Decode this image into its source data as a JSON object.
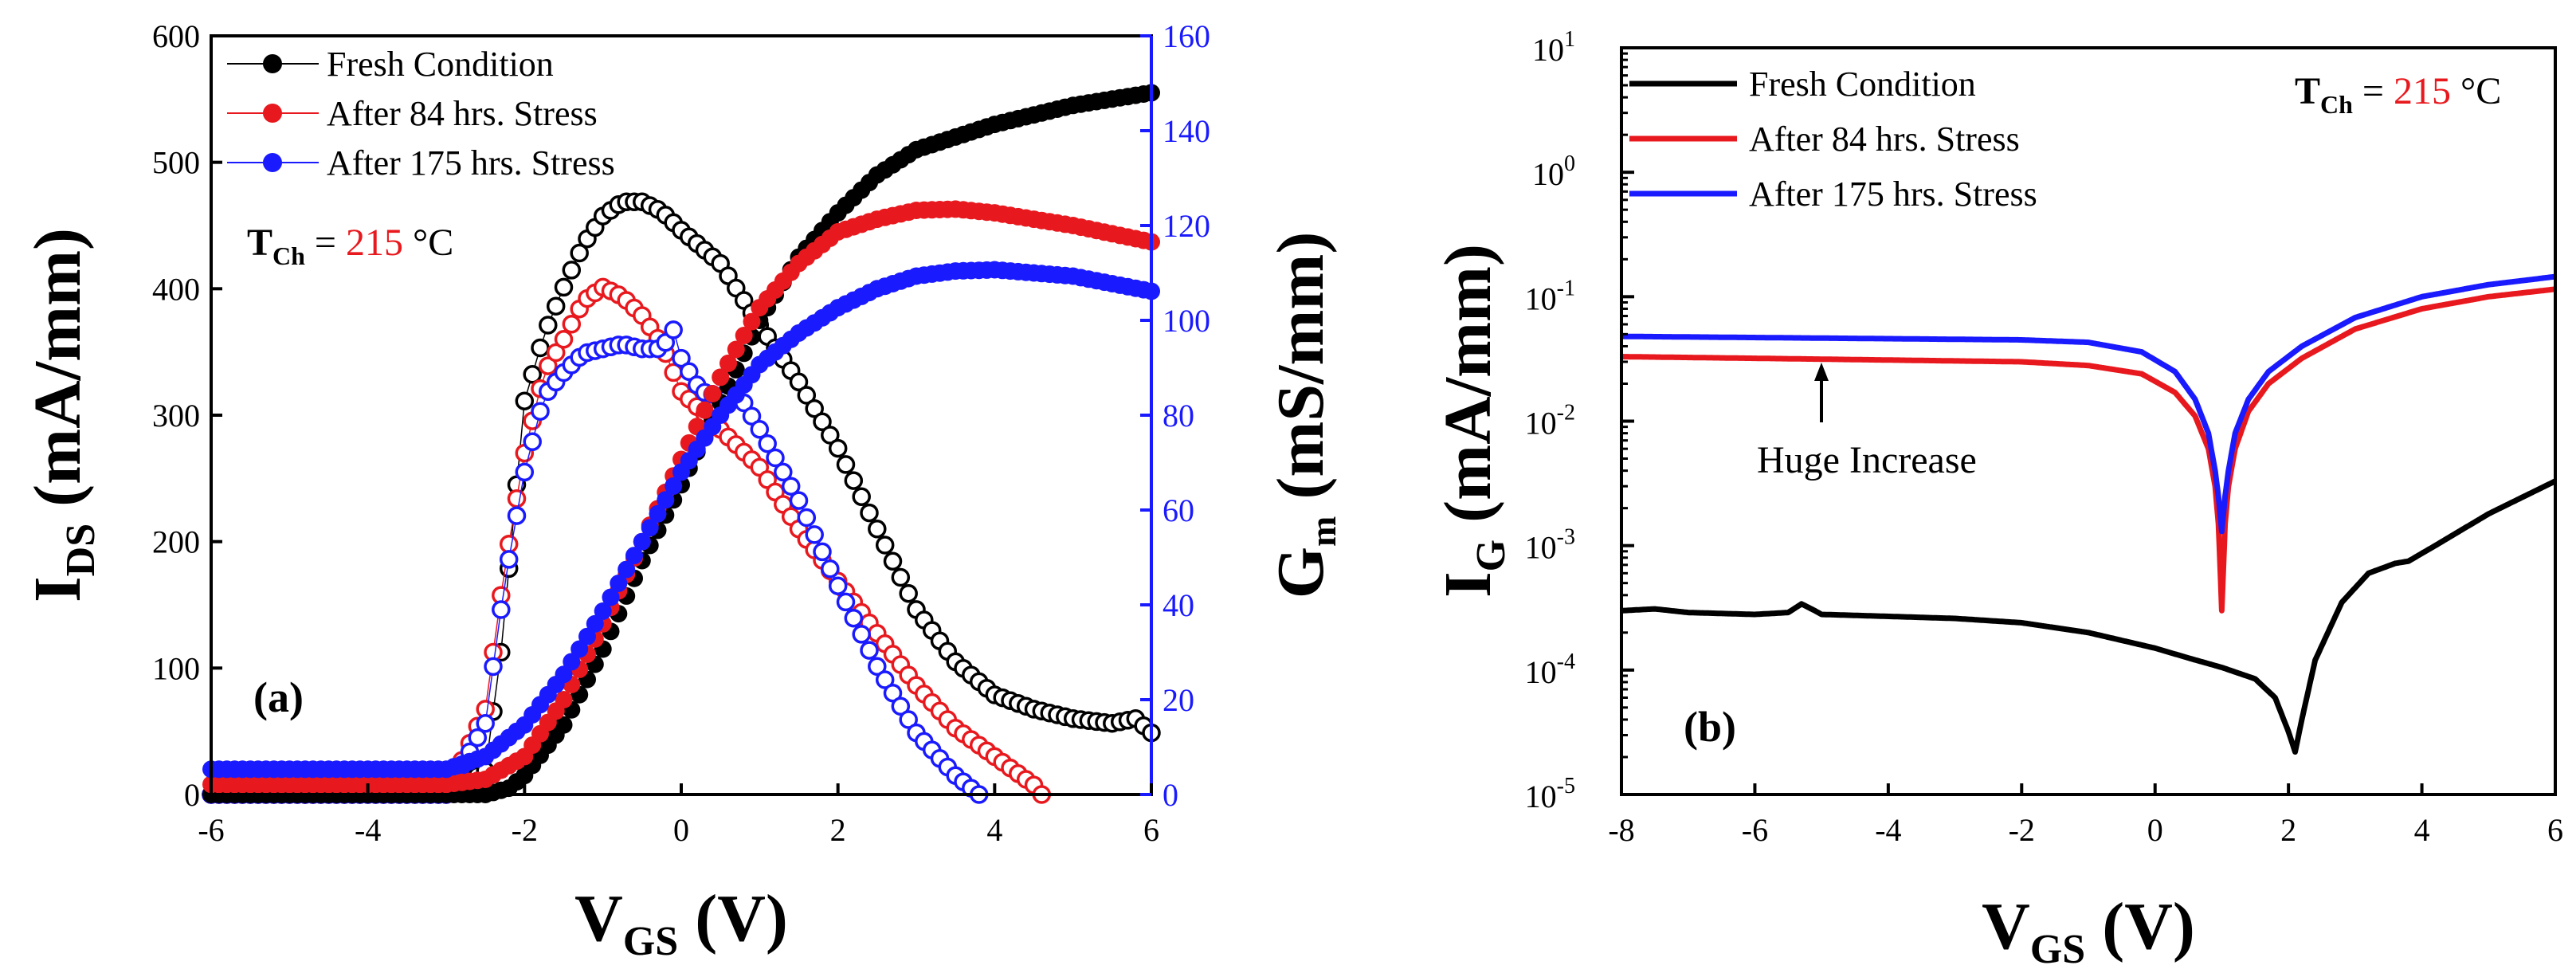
{
  "colors": {
    "fresh": "#000000",
    "after84": "#e8191e",
    "after175": "#1a1aff",
    "right_axis": "#1a1aff",
    "temp_value": "#e8191e"
  },
  "chart_data": [
    {
      "type": "scatter",
      "panel_label": "(a)",
      "xlabel": {
        "main": "V",
        "sub": "GS",
        "unit": " (V)"
      },
      "ylabel": {
        "main": "I",
        "sub": "DS",
        "unit": " (mA/mm)"
      },
      "y2label": {
        "main": "G",
        "sub": "m",
        "unit": " (mS/mm)"
      },
      "xlim": [
        -6,
        6
      ],
      "ylim": [
        0,
        600
      ],
      "y2lim": [
        0,
        160
      ],
      "xticks": [
        -6,
        -4,
        -2,
        0,
        2,
        4,
        6
      ],
      "yticks": [
        0,
        100,
        200,
        300,
        400,
        500,
        600
      ],
      "y2ticks": [
        0,
        20,
        40,
        60,
        80,
        100,
        120,
        140,
        160
      ],
      "legend": [
        "Fresh Condition",
        "After 84 hrs. Stress",
        "After 175 hrs. Stress"
      ],
      "annotation": {
        "prefix": "T",
        "sub": "Ch",
        "eq": " = ",
        "value": "215",
        "unit": " °C"
      },
      "ids_series": [
        {
          "name": "Fresh Condition",
          "color_key": "fresh",
          "x": [
            -6,
            -3,
            -2.5,
            -2.2,
            -2,
            -1.5,
            -1,
            -0.5,
            0,
            0.5,
            1,
            1.5,
            2,
            2.5,
            3,
            4,
            5,
            6
          ],
          "y": [
            0,
            0,
            0,
            5,
            15,
            55,
            115,
            185,
            245,
            310,
            375,
            425,
            460,
            490,
            510,
            530,
            545,
            555
          ]
        },
        {
          "name": "After 84 hrs. Stress",
          "color_key": "after84",
          "x": [
            -6,
            -3,
            -2.5,
            -2,
            -1.5,
            -1,
            -0.5,
            0,
            0.5,
            1,
            1.5,
            2,
            2.5,
            3,
            3.5,
            4,
            5,
            6
          ],
          "y": [
            8,
            8,
            12,
            30,
            75,
            135,
            200,
            265,
            330,
            385,
            420,
            445,
            455,
            462,
            463,
            460,
            450,
            437
          ]
        },
        {
          "name": "After 175 hrs. Stress",
          "color_key": "after175",
          "x": [
            -6,
            -3,
            -2.5,
            -2,
            -1.5,
            -1,
            -0.5,
            0,
            0.5,
            1,
            1.5,
            2,
            2.5,
            3,
            3.5,
            4,
            5,
            6
          ],
          "y": [
            20,
            20,
            30,
            55,
            95,
            145,
            200,
            255,
            300,
            340,
            365,
            385,
            400,
            410,
            414,
            415,
            410,
            398
          ]
        }
      ],
      "gm_series": [
        {
          "name": "Fresh Condition",
          "color_key": "fresh",
          "x": [
            -6,
            -3,
            -2.5,
            -2.3,
            -2,
            -1.75,
            -1.5,
            -1.25,
            -1,
            -0.75,
            -0.5,
            -0.25,
            0,
            0.5,
            1,
            1.5,
            2,
            2.5,
            3,
            3.5,
            4,
            4.5,
            5,
            5.5,
            5.8,
            6
          ],
          "y": [
            0,
            0,
            5,
            30,
            83,
            97,
            107,
            116,
            122,
            125,
            125,
            123,
            119,
            112,
            99,
            87,
            73,
            56,
            39,
            28,
            21,
            18,
            16,
            15,
            16,
            13
          ]
        },
        {
          "name": "After 84 hrs. Stress",
          "color_key": "after84",
          "x": [
            -6,
            -3,
            -2.5,
            -2.25,
            -2,
            -1.75,
            -1.5,
            -1.25,
            -1,
            -0.75,
            -0.5,
            -0.25,
            0,
            0.5,
            1,
            1.5,
            2,
            2.5,
            3,
            3.5,
            4,
            4.5,
            4.6
          ],
          "y": [
            0,
            0,
            18,
            48,
            72,
            89,
            96,
            104,
            107,
            105,
            101,
            95,
            85,
            77,
            69,
            56,
            45,
            34,
            23,
            14,
            8,
            2,
            0
          ]
        },
        {
          "name": "After 175 hrs. Stress",
          "color_key": "after175",
          "x": [
            -6,
            -3,
            -2.5,
            -2.25,
            -2,
            -1.75,
            -1.5,
            -1.25,
            -1,
            -0.75,
            -0.5,
            -0.25,
            -0.1,
            0,
            0.25,
            0.5,
            0.75,
            1,
            1.5,
            2,
            2.5,
            3,
            3.5,
            3.8
          ],
          "y": [
            0,
            0,
            15,
            45,
            68,
            84,
            89,
            93,
            94,
            95,
            94,
            94,
            98,
            92,
            85,
            84,
            84,
            77,
            62,
            44,
            27,
            13,
            4,
            0
          ]
        }
      ]
    },
    {
      "type": "line",
      "panel_label": "(b)",
      "xlabel": {
        "main": "V",
        "sub": "GS",
        "unit": " (V)"
      },
      "ylabel": {
        "main": "I",
        "sub": "G",
        "unit": " (mA/mm)"
      },
      "yscale": "log",
      "xlim": [
        -8,
        6
      ],
      "ylim_exp": [
        -5,
        1
      ],
      "xticks": [
        -8,
        -6,
        -4,
        -2,
        0,
        2,
        4,
        6
      ],
      "yticks_exp": [
        -5,
        -4,
        -3,
        -2,
        -1,
        0,
        1
      ],
      "ytick_base": "10",
      "legend": [
        "Fresh Condition",
        "After 84 hrs. Stress",
        "After 175 hrs. Stress"
      ],
      "annotation": {
        "prefix": "T",
        "sub": "Ch",
        "eq": " = ",
        "value": "215",
        "unit": " °C"
      },
      "arrow_label": "Huge Increase",
      "arrow_x": -5,
      "series": [
        {
          "name": "Fresh Condition",
          "color_key": "fresh",
          "x": [
            -8,
            -7.5,
            -7,
            -6,
            -5.5,
            -5.3,
            -5.1,
            -5,
            -4,
            -3,
            -2,
            -1,
            0,
            0.5,
            1,
            1.5,
            1.8,
            2.0,
            2.1,
            2.2,
            2.4,
            2.8,
            3.2,
            3.6,
            3.8,
            4.2,
            5,
            6
          ],
          "y": [
            0.0003,
            0.00031,
            0.00029,
            0.00028,
            0.00029,
            0.00034,
            0.0003,
            0.00028,
            0.00027,
            0.00026,
            0.00024,
            0.0002,
            0.00015,
            0.000125,
            0.000105,
            8.5e-05,
            6e-05,
            3.2e-05,
            2.2e-05,
            4e-05,
            0.00012,
            0.00035,
            0.0006,
            0.00072,
            0.00075,
            0.001,
            0.0018,
            0.0033
          ]
        },
        {
          "name": "After 84 hrs. Stress",
          "color_key": "after84",
          "x": [
            -8,
            -6,
            -4,
            -2,
            -1,
            -0.2,
            0.3,
            0.6,
            0.8,
            0.9,
            0.95,
            1.0,
            1.05,
            1.1,
            1.2,
            1.4,
            1.7,
            2.2,
            3,
            4,
            5,
            6
          ],
          "y": [
            0.033,
            0.032,
            0.031,
            0.03,
            0.028,
            0.024,
            0.017,
            0.011,
            0.006,
            0.003,
            0.0015,
            0.0003,
            0.0015,
            0.003,
            0.006,
            0.012,
            0.02,
            0.032,
            0.055,
            0.08,
            0.1,
            0.115
          ]
        },
        {
          "name": "After 175 hrs. Stress",
          "color_key": "after175",
          "x": [
            -8,
            -6,
            -4,
            -2,
            -1,
            -0.2,
            0.3,
            0.6,
            0.8,
            0.9,
            0.95,
            1.0,
            1.05,
            1.1,
            1.2,
            1.4,
            1.7,
            2.2,
            3,
            4,
            5,
            6
          ],
          "y": [
            0.048,
            0.047,
            0.046,
            0.045,
            0.043,
            0.036,
            0.025,
            0.015,
            0.008,
            0.004,
            0.0025,
            0.0013,
            0.0025,
            0.004,
            0.008,
            0.015,
            0.025,
            0.04,
            0.068,
            0.1,
            0.125,
            0.145
          ]
        }
      ]
    }
  ]
}
